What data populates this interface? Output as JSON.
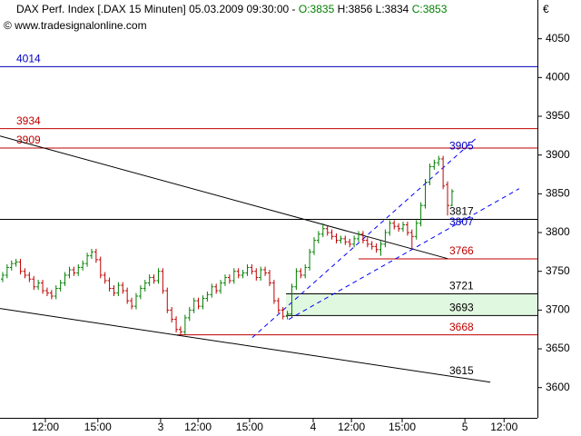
{
  "chart_data": {
    "type": "ohlc",
    "title": "DAX Perf. Index [.DAX  15 Minuten] 05.03.2009 09:30:00 -",
    "title_ohlc": [
      "O:3835",
      "H:3856",
      "L:3834",
      "C:3853"
    ],
    "subtitle": "© www.tradesignalonline.com",
    "y_unit": "€",
    "up_color": "#008000",
    "down_color": "#c00000",
    "xlim": [
      0,
      120.8
    ],
    "xticks": [
      {
        "value": 10.2,
        "label": "12:00"
      },
      {
        "value": 22.0,
        "label": "15:00"
      },
      {
        "value": 36.1,
        "label": "3"
      },
      {
        "value": 44.5,
        "label": "12:00"
      },
      {
        "value": 56.1,
        "label": "15:00"
      },
      {
        "value": 70.4,
        "label": "4"
      },
      {
        "value": 79.0,
        "label": "12:00"
      },
      {
        "value": 90.4,
        "label": "15:00"
      },
      {
        "value": 104.5,
        "label": "5"
      },
      {
        "value": 113.3,
        "label": "12:00"
      }
    ],
    "ylim": [
      3561,
      4100
    ],
    "yticks": [
      3600,
      3650,
      3700,
      3750,
      3800,
      3850,
      3900,
      3950,
      4000,
      4050
    ],
    "ohlc": [
      [
        3740,
        3749,
        3736,
        3745
      ],
      [
        3745,
        3759,
        3741,
        3755
      ],
      [
        3755,
        3764,
        3751,
        3760
      ],
      [
        3760,
        3766,
        3756,
        3762
      ],
      [
        3762,
        3766,
        3746,
        3750
      ],
      [
        3750,
        3754,
        3741,
        3745
      ],
      [
        3745,
        3749,
        3736,
        3740
      ],
      [
        3740,
        3744,
        3726,
        3730
      ],
      [
        3730,
        3739,
        3726,
        3735
      ],
      [
        3735,
        3739,
        3721,
        3725
      ],
      [
        3725,
        3729,
        3718,
        3722
      ],
      [
        3722,
        3726,
        3714,
        3718
      ],
      [
        3718,
        3732,
        3714,
        3728
      ],
      [
        3728,
        3739,
        3724,
        3735
      ],
      [
        3735,
        3749,
        3731,
        3745
      ],
      [
        3745,
        3756,
        3741,
        3752
      ],
      [
        3752,
        3756,
        3744,
        3748
      ],
      [
        3748,
        3759,
        3744,
        3755
      ],
      [
        3755,
        3764,
        3751,
        3760
      ],
      [
        3760,
        3774,
        3756,
        3770
      ],
      [
        3770,
        3779,
        3766,
        3775
      ],
      [
        3775,
        3779,
        3761,
        3765
      ],
      [
        3765,
        3769,
        3741,
        3745
      ],
      [
        3745,
        3749,
        3734,
        3738
      ],
      [
        3738,
        3742,
        3724,
        3728
      ],
      [
        3728,
        3732,
        3718,
        3722
      ],
      [
        3722,
        3736,
        3718,
        3732
      ],
      [
        3732,
        3736,
        3721,
        3725
      ],
      [
        3725,
        3729,
        3708,
        3712
      ],
      [
        3712,
        3716,
        3701,
        3705
      ],
      [
        3705,
        3722,
        3701,
        3718
      ],
      [
        3718,
        3732,
        3714,
        3728
      ],
      [
        3728,
        3739,
        3724,
        3735
      ],
      [
        3735,
        3746,
        3731,
        3742
      ],
      [
        3742,
        3746,
        3734,
        3738
      ],
      [
        3738,
        3754,
        3734,
        3750
      ],
      [
        3750,
        3754,
        3721,
        3725
      ],
      [
        3725,
        3729,
        3696,
        3700
      ],
      [
        3700,
        3704,
        3684,
        3688
      ],
      [
        3688,
        3692,
        3671,
        3675
      ],
      [
        3675,
        3679,
        3668,
        3672
      ],
      [
        3672,
        3694,
        3668,
        3690
      ],
      [
        3690,
        3704,
        3686,
        3700
      ],
      [
        3700,
        3716,
        3696,
        3712
      ],
      [
        3712,
        3716,
        3701,
        3705
      ],
      [
        3705,
        3719,
        3701,
        3715
      ],
      [
        3715,
        3724,
        3711,
        3720
      ],
      [
        3720,
        3734,
        3716,
        3730
      ],
      [
        3730,
        3734,
        3721,
        3725
      ],
      [
        3725,
        3739,
        3721,
        3735
      ],
      [
        3735,
        3746,
        3731,
        3742
      ],
      [
        3742,
        3746,
        3734,
        3738
      ],
      [
        3738,
        3754,
        3734,
        3750
      ],
      [
        3750,
        3754,
        3741,
        3745
      ],
      [
        3745,
        3752,
        3741,
        3748
      ],
      [
        3748,
        3759,
        3744,
        3755
      ],
      [
        3755,
        3759,
        3746,
        3750
      ],
      [
        3750,
        3754,
        3738,
        3742
      ],
      [
        3742,
        3756,
        3738,
        3752
      ],
      [
        3752,
        3756,
        3744,
        3748
      ],
      [
        3748,
        3752,
        3731,
        3735
      ],
      [
        3735,
        3739,
        3708,
        3712
      ],
      [
        3712,
        3716,
        3696,
        3700
      ],
      [
        3700,
        3704,
        3688,
        3692
      ],
      [
        3692,
        3699,
        3688,
        3695
      ],
      [
        3695,
        3734,
        3691,
        3730
      ],
      [
        3730,
        3754,
        3726,
        3750
      ],
      [
        3750,
        3754,
        3741,
        3745
      ],
      [
        3745,
        3759,
        3741,
        3755
      ],
      [
        3755,
        3779,
        3751,
        3775
      ],
      [
        3775,
        3794,
        3771,
        3790
      ],
      [
        3790,
        3802,
        3786,
        3798
      ],
      [
        3798,
        3812,
        3794,
        3805
      ],
      [
        3805,
        3809,
        3796,
        3800
      ],
      [
        3800,
        3804,
        3791,
        3795
      ],
      [
        3795,
        3799,
        3786,
        3790
      ],
      [
        3790,
        3796,
        3786,
        3792
      ],
      [
        3792,
        3796,
        3784,
        3788
      ],
      [
        3788,
        3792,
        3781,
        3785
      ],
      [
        3785,
        3796,
        3781,
        3792
      ],
      [
        3792,
        3802,
        3788,
        3798
      ],
      [
        3798,
        3802,
        3786,
        3790
      ],
      [
        3790,
        3794,
        3781,
        3785
      ],
      [
        3785,
        3789,
        3778,
        3782
      ],
      [
        3782,
        3786,
        3774,
        3778
      ],
      [
        3778,
        3789,
        3770,
        3785
      ],
      [
        3785,
        3804,
        3781,
        3800
      ],
      [
        3800,
        3816,
        3796,
        3812
      ],
      [
        3812,
        3816,
        3804,
        3808
      ],
      [
        3808,
        3812,
        3801,
        3805
      ],
      [
        3805,
        3814,
        3801,
        3810
      ],
      [
        3810,
        3814,
        3796,
        3800
      ],
      [
        3800,
        3804,
        3779,
        3795
      ],
      [
        3795,
        3816,
        3791,
        3812
      ],
      [
        3812,
        3839,
        3808,
        3835
      ],
      [
        3835,
        3869,
        3831,
        3865
      ],
      [
        3865,
        3889,
        3861,
        3885
      ],
      [
        3885,
        3894,
        3881,
        3890
      ],
      [
        3890,
        3899,
        3886,
        3895
      ],
      [
        3895,
        3899,
        3856,
        3860
      ],
      [
        3862,
        3866,
        3822,
        3835
      ],
      [
        3835,
        3856,
        3834,
        3853
      ]
    ],
    "levels": [
      {
        "value": 4014,
        "color": "#0000c0",
        "from": 0
      },
      {
        "value": 3934,
        "color": "#c00000",
        "from": 0
      },
      {
        "value": 3909,
        "color": "#c00000",
        "from": 0
      },
      {
        "value": 3817,
        "color": "#000000",
        "from": 0
      },
      {
        "value": 3766,
        "color": "#c00000",
        "from": 80.6
      },
      {
        "value": 3721,
        "color": "#000000",
        "from": 64.3
      },
      {
        "value": 3693,
        "color": "#000000",
        "from": 64.3
      },
      {
        "value": 3668,
        "color": "#c00000",
        "from": 39.8
      }
    ],
    "zone_color": "#e0f8e0",
    "notes": [
      {
        "value": 3905,
        "color": "#0000c0"
      },
      {
        "value": 3807,
        "color": "#0000c0"
      },
      {
        "value": 3615,
        "color": "#000000"
      }
    ],
    "trendlines": [
      {
        "points": [
          [
            0,
            3924.6
          ],
          [
            100.6,
            3766.4
          ]
        ],
        "color": "#000000",
        "dashed": false
      },
      {
        "points": [
          [
            0,
            3702
          ],
          [
            110.2,
            3607
          ]
        ],
        "color": "#000000",
        "dashed": false
      },
      {
        "points": [
          [
            56.7,
            3664.5
          ],
          [
            107.1,
            3922
          ]
        ],
        "color": "#0000ff",
        "dashed": true
      },
      {
        "points": [
          [
            64.9,
            3688
          ],
          [
            116.7,
            3856.6
          ]
        ],
        "color": "#0000ff",
        "dashed": true
      }
    ]
  }
}
